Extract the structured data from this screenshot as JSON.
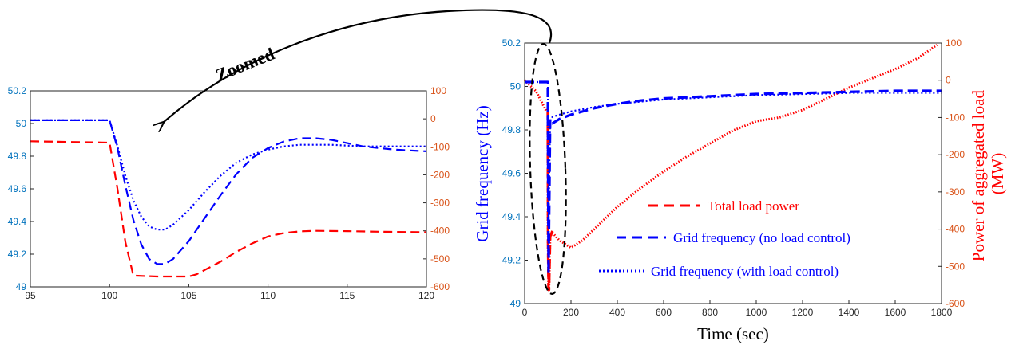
{
  "annotation": {
    "label": "Zoomed"
  },
  "chart_data": [
    {
      "type": "line",
      "name_hint": "zoomed-left",
      "title": "",
      "xlabel": "",
      "ylabel_left": "",
      "ylabel_right": "",
      "xlim": [
        95,
        120
      ],
      "ylim_left": [
        49,
        50.2
      ],
      "ylim_right": [
        -600,
        100
      ],
      "x_ticks": [
        "95",
        "100",
        "105",
        "110",
        "115",
        "120"
      ],
      "y_left_ticks": [
        "49",
        "49.2",
        "49.4",
        "49.6",
        "49.8",
        "50",
        "50.2"
      ],
      "y_right_ticks": [
        "-600",
        "-500",
        "-400",
        "-300",
        "-200",
        "-100",
        "0",
        "100"
      ],
      "grid": false,
      "series": [
        {
          "axis": "right",
          "style": "dashed",
          "color": "#ff0000",
          "x": [
            95,
            100,
            100.5,
            101,
            101.5,
            103,
            105,
            105.5,
            106,
            107,
            108,
            109,
            110,
            111,
            112,
            113,
            115,
            117,
            120
          ],
          "y": [
            -80,
            -85,
            -250,
            -440,
            -560,
            -563,
            -563,
            -555,
            -540,
            -510,
            -475,
            -445,
            -420,
            -408,
            -402,
            -400,
            -401,
            -403,
            -405
          ]
        },
        {
          "axis": "left",
          "style": "dashed",
          "color": "#0000ff",
          "x": [
            95,
            100,
            100.5,
            101,
            101.5,
            102,
            102.5,
            103,
            103.5,
            104,
            105,
            106,
            107,
            108,
            109,
            110,
            111,
            112,
            113,
            114,
            115,
            116,
            118,
            120
          ],
          "y": [
            50.02,
            50.02,
            49.85,
            49.62,
            49.41,
            49.26,
            49.17,
            49.14,
            49.14,
            49.17,
            49.28,
            49.42,
            49.56,
            49.69,
            49.79,
            49.85,
            49.89,
            49.91,
            49.91,
            49.9,
            49.88,
            49.86,
            49.84,
            49.83
          ]
        },
        {
          "axis": "left",
          "style": "dotted",
          "color": "#0000ff",
          "x": [
            95,
            100,
            100.5,
            101,
            101.5,
            102,
            102.5,
            103,
            103.5,
            104,
            105,
            106,
            107,
            108,
            109,
            110,
            111,
            112,
            114,
            116,
            118,
            120
          ],
          "y": [
            50.02,
            50.02,
            49.86,
            49.68,
            49.53,
            49.43,
            49.37,
            49.35,
            49.35,
            49.38,
            49.47,
            49.58,
            49.68,
            49.76,
            49.81,
            49.84,
            49.86,
            49.87,
            49.87,
            49.86,
            49.86,
            49.86
          ]
        }
      ]
    },
    {
      "type": "line",
      "name_hint": "main-right",
      "title": "",
      "xlabel": "Time (sec)",
      "ylabel_left": "Grid frequency (Hz)",
      "ylabel_right": "Power of aggregated load (MW)",
      "ylabel_right_lines": [
        "Power of aggregated load",
        "(MW)"
      ],
      "xlim": [
        0,
        1800
      ],
      "ylim_left": [
        49,
        50.2
      ],
      "ylim_right": [
        -600,
        100
      ],
      "x_ticks": [
        "0",
        "200",
        "400",
        "600",
        "800",
        "1000",
        "1200",
        "1400",
        "1600",
        "1800"
      ],
      "y_left_ticks": [
        "49",
        "49.2",
        "49.4",
        "49.6",
        "49.8",
        "50",
        "50.2"
      ],
      "y_right_ticks": [
        "-600",
        "-500",
        "-400",
        "-300",
        "-200",
        "-100",
        "0",
        "100"
      ],
      "grid": false,
      "legend": {
        "placement": "bottom-center",
        "entries": [
          "Total load power",
          "Grid frequency (no load control)",
          "Grid frequency (with load control)"
        ]
      },
      "series": [
        {
          "name": "Total load power",
          "axis": "right",
          "style": "dotted-thick",
          "color": "#ff0000",
          "x": [
            0,
            50,
            95,
            100,
            101,
            103,
            105,
            110,
            120,
            150,
            200,
            250,
            300,
            400,
            500,
            600,
            700,
            800,
            900,
            1000,
            1100,
            1200,
            1300,
            1400,
            1500,
            1600,
            1700,
            1780
          ],
          "y": [
            0,
            -30,
            -85,
            -85,
            -440,
            -563,
            -563,
            -420,
            -410,
            -430,
            -450,
            -430,
            -400,
            -340,
            -290,
            -245,
            -205,
            -170,
            -135,
            -110,
            -100,
            -80,
            -50,
            -20,
            5,
            30,
            60,
            95
          ]
        },
        {
          "name": "Total load power (drop)",
          "axis": "right",
          "style": "dashed",
          "color": "#ff0000",
          "x": [
            95,
            100,
            101,
            103,
            105,
            110,
            120
          ],
          "y": [
            -85,
            -85,
            -440,
            -563,
            -563,
            -420,
            -405
          ]
        },
        {
          "name": "Grid frequency (no load control)",
          "axis": "left",
          "style": "dashed",
          "color": "#0000ff",
          "x": [
            0,
            95,
            100,
            103,
            110,
            120,
            150,
            200,
            300,
            400,
            500,
            600,
            800,
            1000,
            1200,
            1400,
            1600,
            1800
          ],
          "y": [
            50.02,
            50.02,
            50.02,
            49.14,
            49.85,
            49.83,
            49.85,
            49.87,
            49.9,
            49.92,
            49.935,
            49.945,
            49.955,
            49.965,
            49.97,
            49.975,
            49.98,
            49.98
          ]
        },
        {
          "name": "Grid frequency (with load control)",
          "axis": "left",
          "style": "dotted",
          "color": "#0000ff",
          "x": [
            0,
            95,
            100,
            103,
            110,
            120,
            150,
            200,
            300,
            400,
            500,
            600,
            800,
            1000,
            1200,
            1400,
            1600,
            1800
          ],
          "y": [
            50.02,
            50.02,
            50.02,
            49.35,
            49.84,
            49.86,
            49.87,
            49.885,
            49.905,
            49.92,
            49.93,
            49.94,
            49.95,
            49.96,
            49.965,
            49.97,
            49.97,
            49.97
          ]
        }
      ]
    }
  ]
}
